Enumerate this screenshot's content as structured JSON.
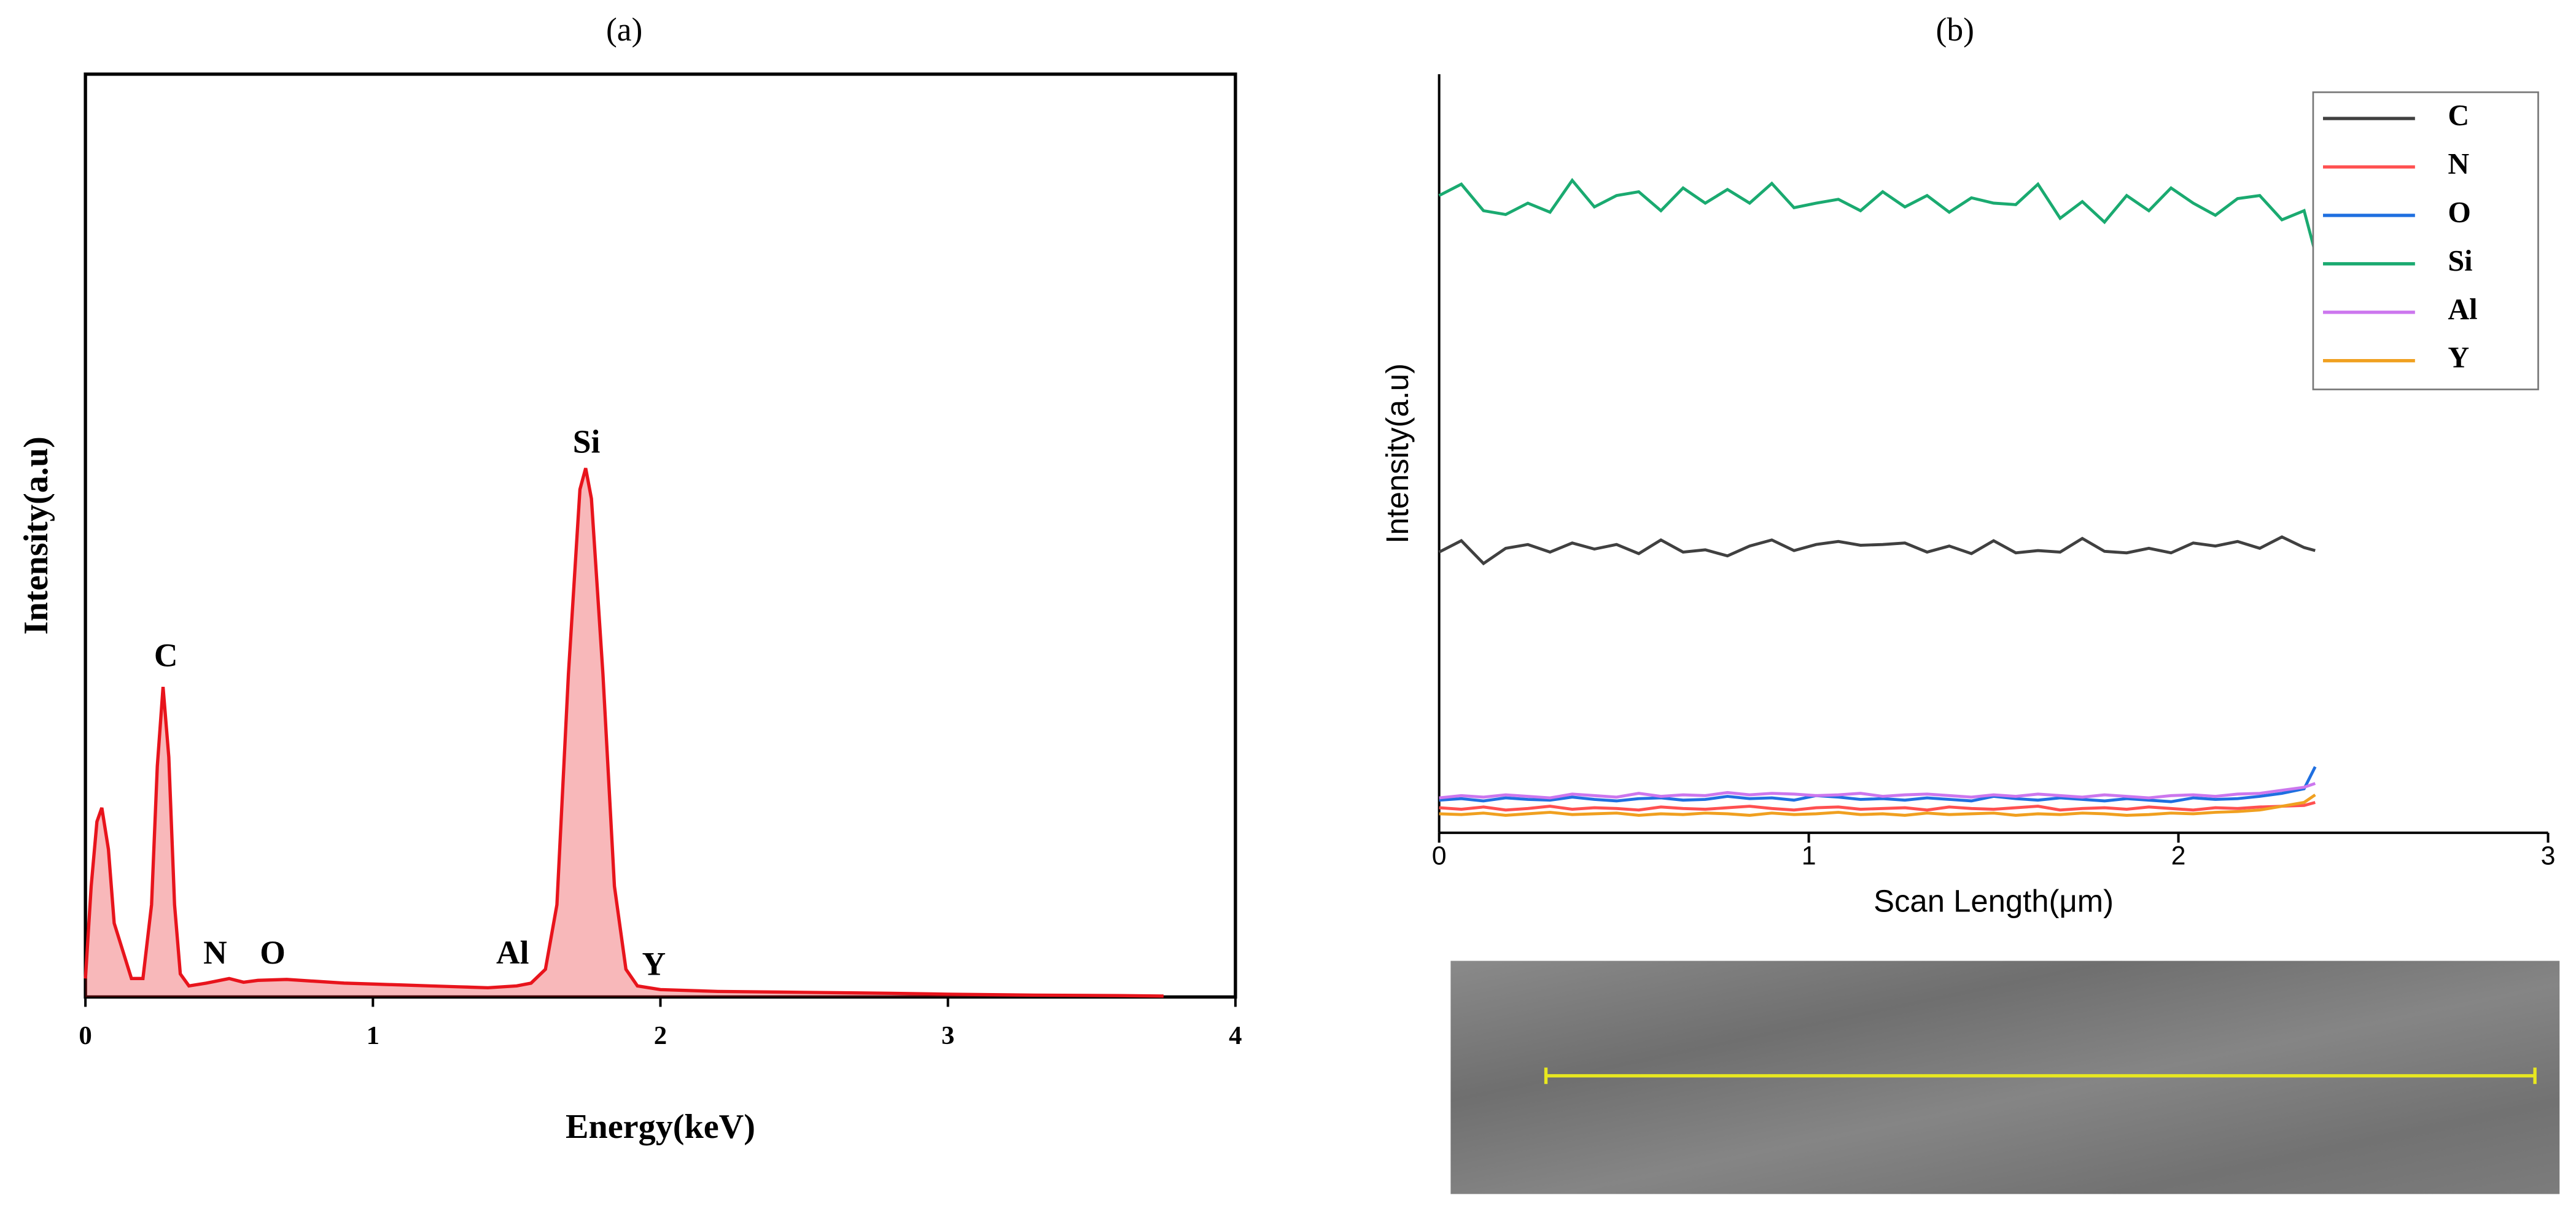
{
  "chart_data": [
    {
      "type": "area",
      "panel": "(a)",
      "xlabel": "Energy(keV)",
      "ylabel": "Intensity(a.u)",
      "color": "#e8141c",
      "xlim": [
        0,
        4
      ],
      "xticks": [
        0,
        1,
        2,
        3,
        4
      ],
      "ylim": [
        0,
        100
      ],
      "x": [
        0,
        0.02,
        0.04,
        0.057,
        0.08,
        0.1,
        0.13,
        0.16,
        0.2,
        0.23,
        0.25,
        0.27,
        0.29,
        0.31,
        0.33,
        0.36,
        0.42,
        0.5,
        0.55,
        0.6,
        0.7,
        0.8,
        0.9,
        1.0,
        1.1,
        1.2,
        1.3,
        1.4,
        1.5,
        1.55,
        1.6,
        1.64,
        1.68,
        1.72,
        1.74,
        1.76,
        1.8,
        1.84,
        1.88,
        1.92,
        2.0,
        2.2,
        2.5,
        2.8,
        3.0,
        3.3,
        3.6,
        3.75
      ],
      "values": [
        2,
        12,
        19,
        20.5,
        16,
        8,
        5,
        2,
        2,
        10,
        25,
        33.6,
        26,
        10,
        2.5,
        1.2,
        1.5,
        2,
        1.6,
        1.8,
        1.9,
        1.7,
        1.5,
        1.4,
        1.3,
        1.2,
        1.1,
        1.0,
        1.2,
        1.5,
        3,
        10,
        35,
        55,
        57.3,
        54,
        35,
        12,
        3,
        1.2,
        0.8,
        0.6,
        0.5,
        0.4,
        0.3,
        0.2,
        0.15,
        0.1
      ],
      "annotations": [
        "C",
        "N",
        "O",
        "Si",
        "Al",
        "Y"
      ]
    },
    {
      "type": "line",
      "panel": "(b)",
      "xlabel": "Scan Length(μm)",
      "ylabel": "Intensity(a.u)",
      "xlim": [
        0,
        3
      ],
      "xticks": [
        0,
        1,
        2,
        3
      ],
      "ylim": [
        0,
        100
      ],
      "legend": "upper right",
      "x": [
        0,
        0.06,
        0.12,
        0.18,
        0.24,
        0.3,
        0.36,
        0.42,
        0.48,
        0.54,
        0.6,
        0.66,
        0.72,
        0.78,
        0.84,
        0.9,
        0.96,
        1.02,
        1.08,
        1.14,
        1.2,
        1.26,
        1.32,
        1.38,
        1.44,
        1.5,
        1.56,
        1.62,
        1.68,
        1.74,
        1.8,
        1.86,
        1.92,
        1.98,
        2.04,
        2.1,
        2.16,
        2.22,
        2.28,
        2.34,
        2.37
      ],
      "series": [
        {
          "name": "C",
          "color": "#404040",
          "values": [
            37,
            38.5,
            35.5,
            37.5,
            38,
            37,
            38.2,
            37.4,
            38,
            36.8,
            38.6,
            37,
            37.3,
            36.5,
            37.8,
            38.6,
            37.2,
            38,
            38.4,
            37.9,
            38,
            38.2,
            37,
            37.8,
            36.8,
            38.5,
            36.9,
            37.2,
            37,
            38.8,
            37.1,
            36.9,
            37.5,
            36.9,
            38.2,
            37.8,
            38.4,
            37.5,
            39,
            37.6,
            37.2
          ]
        },
        {
          "name": "N",
          "color": "#ff5050",
          "values": [
            3.3,
            3.1,
            3.4,
            3.0,
            3.2,
            3.5,
            3.1,
            3.3,
            3.2,
            3.0,
            3.4,
            3.2,
            3.1,
            3.3,
            3.5,
            3.2,
            3.0,
            3.3,
            3.4,
            3.1,
            3.2,
            3.3,
            3.0,
            3.4,
            3.2,
            3.1,
            3.3,
            3.5,
            3.0,
            3.2,
            3.3,
            3.1,
            3.4,
            3.2,
            3.0,
            3.3,
            3.2,
            3.4,
            3.5,
            3.6,
            4.0
          ]
        },
        {
          "name": "O",
          "color": "#1f6fe0",
          "values": [
            4.3,
            4.5,
            4.2,
            4.6,
            4.4,
            4.3,
            4.7,
            4.4,
            4.2,
            4.5,
            4.6,
            4.3,
            4.4,
            4.8,
            4.5,
            4.6,
            4.3,
            4.9,
            4.7,
            4.4,
            4.5,
            4.3,
            4.6,
            4.4,
            4.2,
            4.8,
            4.5,
            4.3,
            4.6,
            4.4,
            4.2,
            4.5,
            4.3,
            4.1,
            4.6,
            4.4,
            4.5,
            4.8,
            5.2,
            5.8,
            8.7
          ]
        },
        {
          "name": "Si",
          "color": "#1aaa70",
          "values": [
            84,
            85.5,
            82,
            81.5,
            83,
            81.8,
            86,
            82.5,
            84,
            84.5,
            82,
            85,
            83,
            84.8,
            83,
            85.6,
            82.4,
            83,
            83.5,
            82,
            84.5,
            82.5,
            84,
            81.8,
            83.7,
            83,
            82.8,
            85.5,
            81,
            83.2,
            80.5,
            84,
            82,
            85,
            83,
            81.4,
            83.6,
            84,
            80.8,
            82,
            76.5
          ]
        },
        {
          "name": "Al",
          "color": "#cc77ee",
          "values": [
            4.6,
            4.9,
            4.7,
            5.0,
            4.8,
            4.6,
            5.1,
            4.9,
            4.7,
            5.2,
            4.8,
            5.0,
            4.9,
            5.3,
            5.0,
            5.2,
            5.1,
            4.9,
            5.0,
            5.2,
            4.8,
            5.0,
            5.1,
            4.9,
            4.7,
            5.0,
            4.8,
            5.1,
            4.9,
            4.7,
            5.0,
            4.8,
            4.6,
            4.9,
            5.0,
            4.8,
            5.1,
            5.2,
            5.6,
            6.0,
            6.5
          ]
        },
        {
          "name": "Y",
          "color": "#f0a020",
          "values": [
            2.5,
            2.4,
            2.6,
            2.3,
            2.5,
            2.7,
            2.4,
            2.5,
            2.6,
            2.3,
            2.5,
            2.4,
            2.6,
            2.5,
            2.3,
            2.6,
            2.4,
            2.5,
            2.7,
            2.4,
            2.5,
            2.3,
            2.6,
            2.4,
            2.5,
            2.6,
            2.3,
            2.5,
            2.4,
            2.6,
            2.5,
            2.3,
            2.4,
            2.6,
            2.5,
            2.7,
            2.8,
            3.0,
            3.5,
            4.0,
            5.0
          ]
        }
      ]
    }
  ]
}
